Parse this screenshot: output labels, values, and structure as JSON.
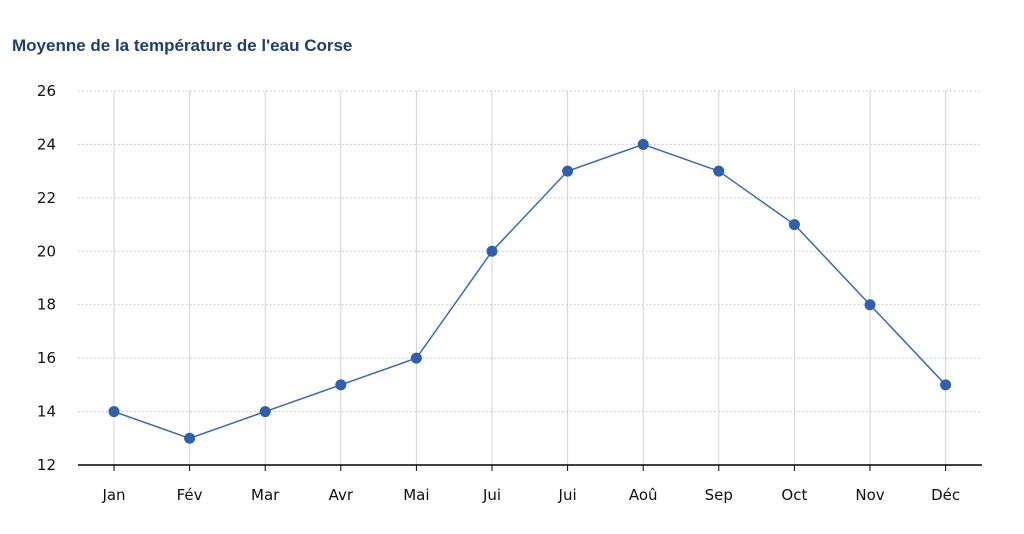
{
  "chart_data": {
    "type": "line",
    "title": "Moyenne de la température de l'eau Corse",
    "xlabel": "",
    "ylabel": "",
    "categories": [
      "Jan",
      "Fév",
      "Mar",
      "Avr",
      "Mai",
      "Jui",
      "Jui",
      "Aoû",
      "Sep",
      "Oct",
      "Nov",
      "Déc"
    ],
    "series": [
      {
        "values": [
          14,
          13,
          14,
          15,
          16,
          20,
          23,
          24,
          23,
          21,
          18,
          15
        ]
      }
    ],
    "ylim": [
      12,
      26
    ],
    "yticks": [
      12,
      14,
      16,
      18,
      20,
      22,
      24,
      26
    ],
    "grid": true,
    "legend": "none",
    "colors": {
      "line": "#3a6ab4",
      "marker": "#2f5fad",
      "title": "#1f3f70",
      "grid_h": "#bdbdbd",
      "grid_v": "#d2d2d2",
      "axis": "#000000"
    }
  }
}
